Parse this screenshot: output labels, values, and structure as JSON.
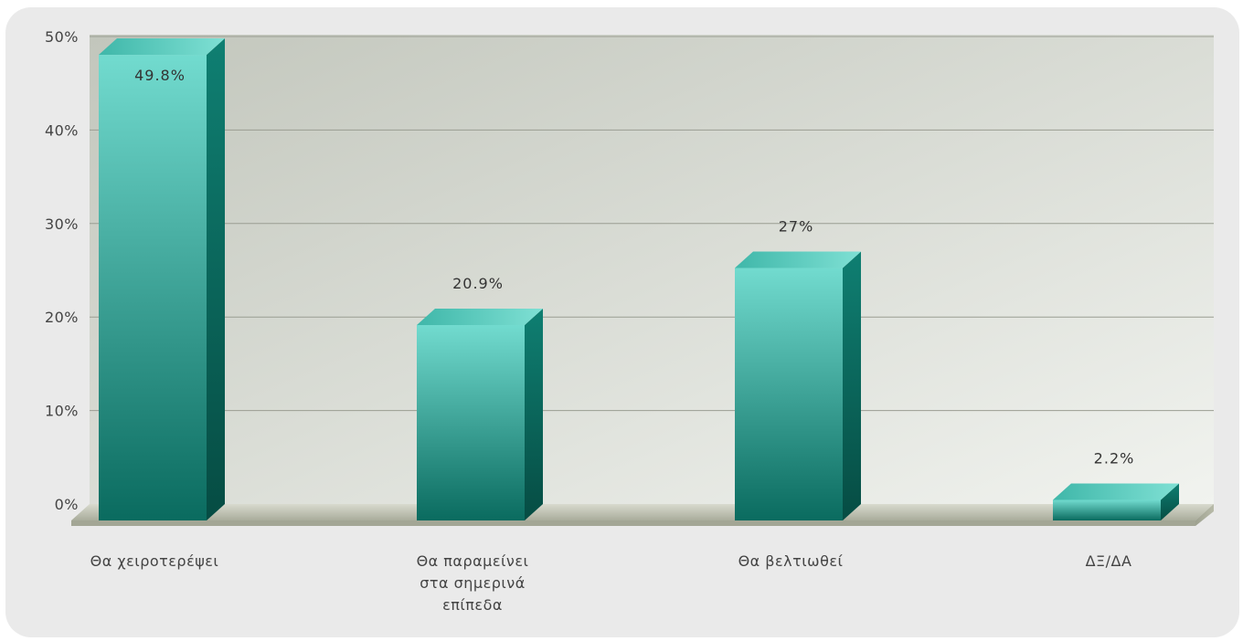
{
  "chart_data": {
    "type": "bar",
    "categories": [
      [
        "Θα χειροτερέψει"
      ],
      [
        "Θα παραμείνει",
        "στα σημερινά",
        "επίπεδα"
      ],
      [
        "Θα βελτιωθεί"
      ],
      [
        "ΔΞ/ΔΑ"
      ]
    ],
    "values": [
      49.8,
      20.9,
      27,
      2.2
    ],
    "value_labels": [
      "49.8%",
      "20.9%",
      "27%",
      "2.2%"
    ],
    "yticks": [
      0,
      10,
      20,
      30,
      40,
      50
    ],
    "ytick_labels": [
      "0%",
      "10%",
      "20%",
      "30%",
      "40%",
      "50%"
    ],
    "ylim": [
      0,
      50
    ],
    "grid": true,
    "legend": "none",
    "colors": {
      "bar_front_light": "#6fd8cc",
      "bar_front_dark": "#0b6e62",
      "bar_side": "#0a5e54",
      "bar_top": "#4fc8ba",
      "wall_light": "#f0f2ee",
      "wall_dark": "#c4c8be",
      "floor": "#c9ccbd",
      "frame": "#eaeaea"
    }
  }
}
